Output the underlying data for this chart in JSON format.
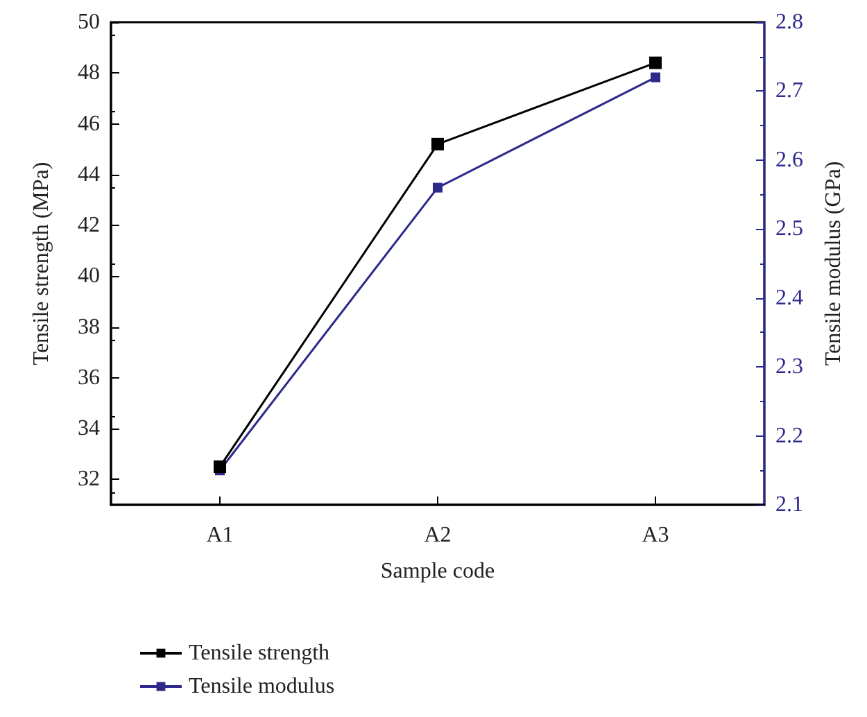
{
  "chart_data": {
    "type": "line",
    "xlabel": "Sample code",
    "ylabel": "Tensile strength (MPa)",
    "y2label": "Tensile modulus (GPa)",
    "categories": [
      "A1",
      "A2",
      "A3"
    ],
    "series": [
      {
        "name": "Tensile strength",
        "color": "#000000",
        "values": [
          32.5,
          45.2,
          48.4
        ]
      },
      {
        "name": "Tensile modulus",
        "color": "#2e2a8c",
        "axis": "y2",
        "values": [
          2.15,
          2.56,
          2.72
        ]
      }
    ],
    "ylim": [
      31,
      50
    ],
    "yticks": [
      32,
      34,
      36,
      38,
      40,
      42,
      44,
      46,
      48,
      50
    ],
    "y2lim": [
      2.1,
      2.8
    ],
    "y2ticks": [
      2.1,
      2.2,
      2.3,
      2.4,
      2.5,
      2.6,
      2.7,
      2.8
    ],
    "grid": false,
    "legend": "bottom left",
    "marker": "square",
    "line_style": "solid"
  }
}
